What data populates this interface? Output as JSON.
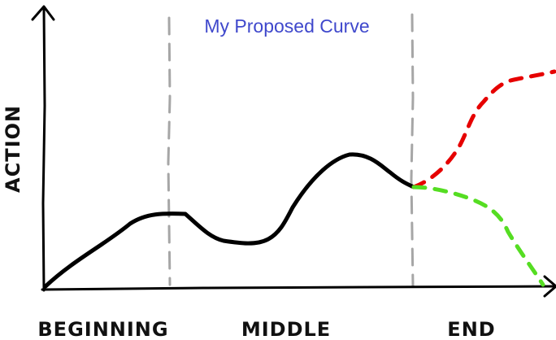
{
  "diagram": {
    "title": "My Proposed Curve",
    "y_axis_label": "ACTION",
    "sections": {
      "beginning": "BEGINNING",
      "middle": "MIDDLE",
      "end": "END"
    },
    "colors": {
      "title": "#3f48cc",
      "main_curve": "#000000",
      "rising_branch": "#e60000",
      "falling_branch": "#55dd22",
      "divider": "#a6a6a6",
      "axes": "#000000"
    }
  }
}
